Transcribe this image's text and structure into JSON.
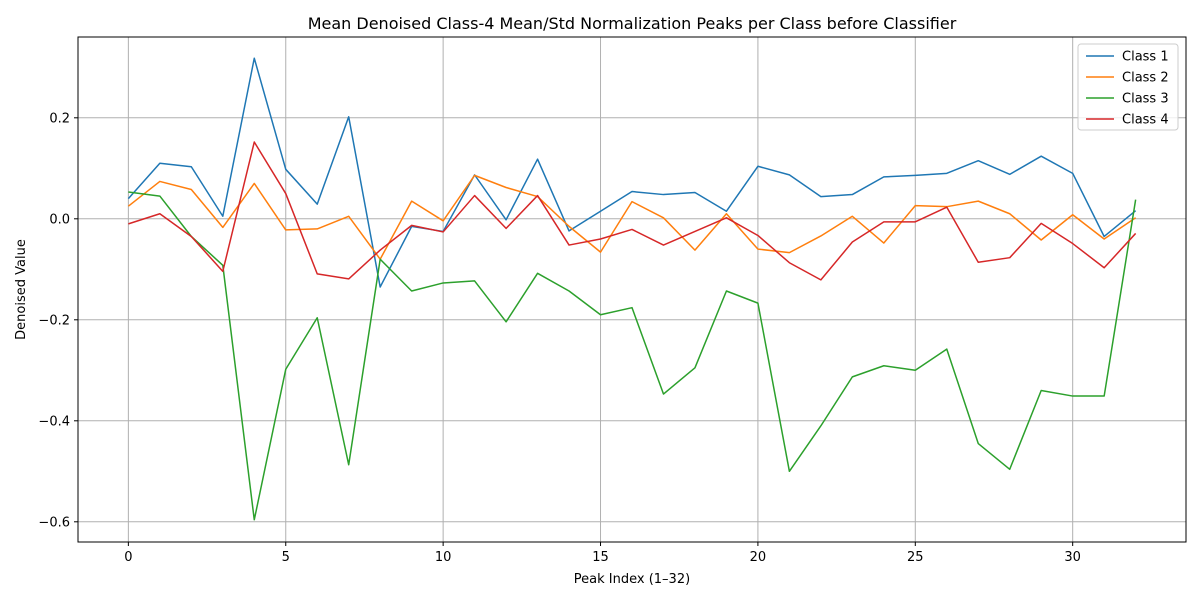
{
  "chart_data": {
    "type": "line",
    "title": "Mean Denoised Class-4 Mean/Std Normalization Peaks per Class before Classifier",
    "xlabel": "Peak Index (1–32)",
    "ylabel": "Denoised Value",
    "xlim": [
      -1.6,
      33.6
    ],
    "ylim": [
      -0.64,
      0.36
    ],
    "xticks": [
      0,
      5,
      10,
      15,
      20,
      25,
      30
    ],
    "yticks": [
      -0.6,
      -0.4,
      -0.2,
      0.0,
      0.2
    ],
    "ytick_labels": [
      "−0.6",
      "−0.4",
      "−0.2",
      "0.0",
      "0.2"
    ],
    "grid": true,
    "legend_position": "top-right",
    "x": [
      0,
      1,
      2,
      3,
      4,
      5,
      6,
      7,
      8,
      9,
      10,
      11,
      12,
      13,
      14,
      15,
      16,
      17,
      18,
      19,
      20,
      21,
      22,
      23,
      24,
      25,
      26,
      27,
      28,
      29,
      30,
      31,
      32
    ],
    "series": [
      {
        "name": "Class 1",
        "color": "#1f77b4",
        "values": [
          0.04,
          0.11,
          0.103,
          0.005,
          0.318,
          0.098,
          0.029,
          0.202,
          -0.135,
          -0.015,
          -0.025,
          0.087,
          -0.002,
          0.118,
          -0.024,
          0.015,
          0.054,
          0.048,
          0.052,
          0.015,
          0.104,
          0.087,
          0.044,
          0.048,
          0.083,
          0.086,
          0.09,
          0.115,
          0.088,
          0.124,
          0.09,
          -0.035,
          0.016
        ]
      },
      {
        "name": "Class 2",
        "color": "#ff7f0e",
        "values": [
          0.025,
          0.074,
          0.058,
          -0.017,
          0.07,
          -0.022,
          -0.02,
          0.005,
          -0.08,
          0.035,
          -0.004,
          0.086,
          0.062,
          0.044,
          -0.015,
          -0.066,
          0.034,
          0.002,
          -0.062,
          0.01,
          -0.06,
          -0.067,
          -0.034,
          0.005,
          -0.048,
          0.026,
          0.024,
          0.035,
          0.01,
          -0.042,
          0.008,
          -0.04,
          0.002
        ]
      },
      {
        "name": "Class 3",
        "color": "#2ca02c",
        "values": [
          0.053,
          0.045,
          -0.035,
          -0.092,
          -0.596,
          -0.298,
          -0.196,
          -0.487,
          -0.08,
          -0.143,
          -0.127,
          -0.123,
          -0.204,
          -0.108,
          -0.143,
          -0.19,
          -0.176,
          -0.347,
          -0.295,
          -0.143,
          -0.167,
          -0.5,
          -0.41,
          -0.313,
          -0.291,
          -0.3,
          -0.258,
          -0.445,
          -0.496,
          -0.34,
          -0.351,
          -0.351,
          0.038
        ]
      },
      {
        "name": "Class 4",
        "color": "#d62728",
        "values": [
          -0.01,
          0.01,
          -0.035,
          -0.104,
          0.152,
          0.05,
          -0.109,
          -0.119,
          -0.062,
          -0.013,
          -0.026,
          0.046,
          -0.019,
          0.046,
          -0.052,
          -0.04,
          -0.021,
          -0.052,
          -0.025,
          0.002,
          -0.033,
          -0.087,
          -0.121,
          -0.046,
          -0.006,
          -0.006,
          0.023,
          -0.086,
          -0.077,
          -0.009,
          -0.049,
          -0.097,
          -0.029
        ]
      }
    ]
  }
}
